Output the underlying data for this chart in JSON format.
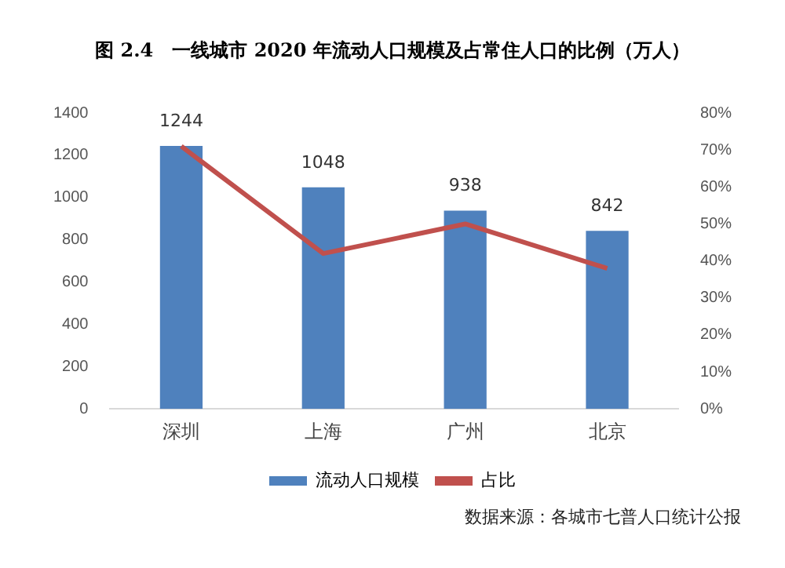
{
  "chart_data": {
    "type": "bar",
    "title": "图 2.4　一线城市 2020 年流动人口规模及占常住人口的比例（万人）",
    "categories": [
      "深圳",
      "上海",
      "广州",
      "北京"
    ],
    "series": [
      {
        "name": "流动人口规模",
        "color": "#4f81bd",
        "values": [
          1244,
          1048,
          938,
          842
        ],
        "value_labels": [
          "1244",
          "1048",
          "938",
          "842"
        ]
      },
      {
        "name": "占比",
        "type": "line",
        "axis": "y2",
        "color": "#c0504d",
        "values": [
          71,
          42,
          50,
          38
        ],
        "marker": "none"
      }
    ],
    "ylim": [
      0,
      1400
    ],
    "yticks": [
      0,
      200,
      400,
      600,
      800,
      1000,
      1200,
      1400
    ],
    "y2lim": [
      0,
      80
    ],
    "y2ticks": [
      {
        "value": 0,
        "label": "0%"
      },
      {
        "value": 10,
        "label": "10%"
      },
      {
        "value": 20,
        "label": "20%"
      },
      {
        "value": 30,
        "label": "30%"
      },
      {
        "value": 40,
        "label": "40%"
      },
      {
        "value": 50,
        "label": "50%"
      },
      {
        "value": 60,
        "label": "60%"
      },
      {
        "value": 70,
        "label": "70%"
      },
      {
        "value": 80,
        "label": "80%"
      }
    ],
    "grid": false,
    "legend": "bottom",
    "annotations": [
      "数据来源：各城市七普人口统计公报"
    ]
  }
}
